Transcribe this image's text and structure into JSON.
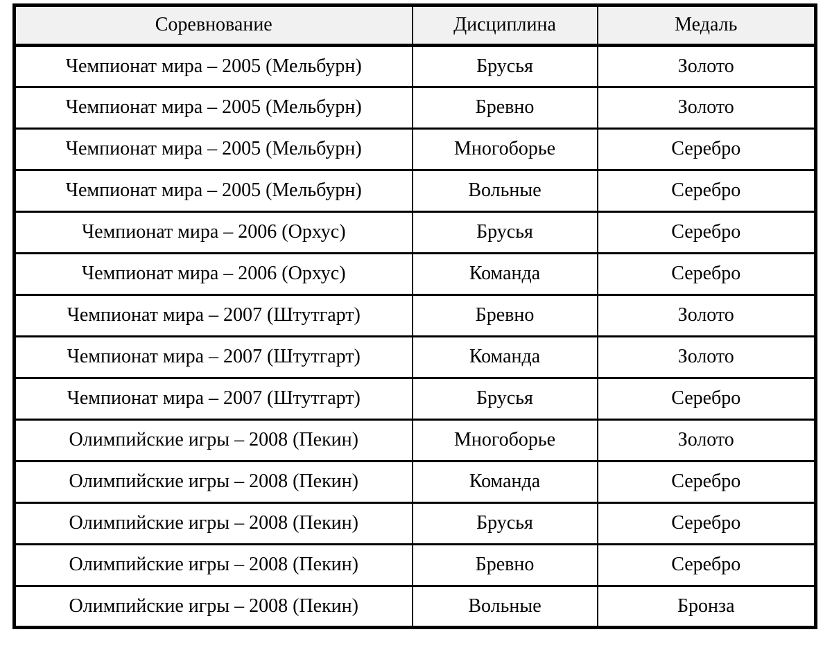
{
  "colors": {
    "page_bg": "#ffffff",
    "header_bg": "#f1f1f1",
    "border": "#000000",
    "text": "#000000"
  },
  "table": {
    "headers": [
      "Соревнование",
      "Дисциплина",
      "Медаль"
    ],
    "rows": [
      {
        "competition": "Чемпионат мира – 2005 (Мельбурн)",
        "discipline": "Брусья",
        "medal": "Золото"
      },
      {
        "competition": "Чемпионат мира – 2005 (Мельбурн)",
        "discipline": "Бревно",
        "medal": "Золото"
      },
      {
        "competition": "Чемпионат мира – 2005 (Мельбурн)",
        "discipline": "Многоборье",
        "medal": "Серебро"
      },
      {
        "competition": "Чемпионат мира – 2005 (Мельбурн)",
        "discipline": "Вольные",
        "medal": "Серебро"
      },
      {
        "competition": "Чемпионат мира – 2006 (Орхус)",
        "discipline": "Брусья",
        "medal": "Серебро"
      },
      {
        "competition": "Чемпионат мира – 2006 (Орхус)",
        "discipline": "Команда",
        "medal": "Серебро"
      },
      {
        "competition": "Чемпионат мира – 2007 (Штутгарт)",
        "discipline": "Бревно",
        "medal": "Золото"
      },
      {
        "competition": "Чемпионат мира – 2007 (Штутгарт)",
        "discipline": "Команда",
        "medal": "Золото"
      },
      {
        "competition": "Чемпионат мира – 2007 (Штутгарт)",
        "discipline": "Брусья",
        "medal": "Серебро"
      },
      {
        "competition": "Олимпийские игры – 2008 (Пекин)",
        "discipline": "Многоборье",
        "medal": "Золото"
      },
      {
        "competition": "Олимпийские игры – 2008 (Пекин)",
        "discipline": "Команда",
        "medal": "Серебро"
      },
      {
        "competition": "Олимпийские игры – 2008 (Пекин)",
        "discipline": "Брусья",
        "medal": "Серебро"
      },
      {
        "competition": "Олимпийские игры – 2008 (Пекин)",
        "discipline": "Бревно",
        "medal": "Серебро"
      },
      {
        "competition": "Олимпийские игры – 2008 (Пекин)",
        "discipline": "Вольные",
        "medal": "Бронза"
      }
    ]
  }
}
